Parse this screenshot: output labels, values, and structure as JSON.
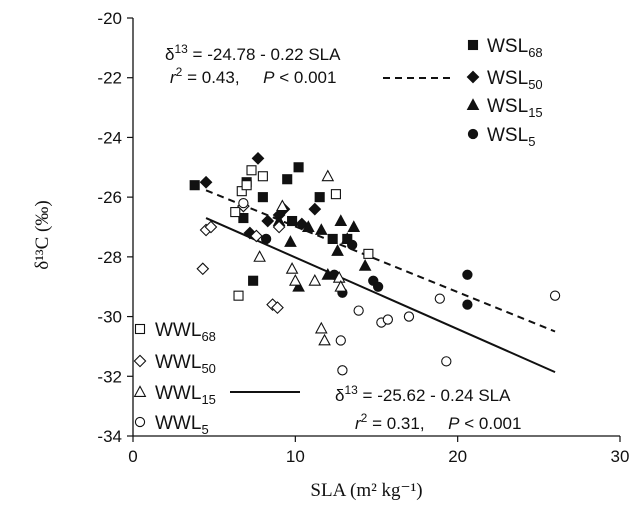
{
  "chart_data": {
    "type": "scatter",
    "xlabel": "SLA (m² kg⁻¹)",
    "ylabel": "δ¹³C (‰)",
    "xlim": [
      0,
      30
    ],
    "ylim": [
      -34,
      -20
    ],
    "xticks": [
      0,
      10,
      20,
      30
    ],
    "yticks": [
      -34,
      -32,
      -30,
      -28,
      -26,
      -24,
      -22,
      -20
    ],
    "grid": false,
    "legend_position": "top-right (WSL) and bottom-left (WWL)",
    "series": [
      {
        "name": "WSL68",
        "label_main": "WSL",
        "label_sub": "68",
        "marker": "square",
        "filled": true,
        "points": [
          [
            3.8,
            -25.6
          ],
          [
            6.8,
            -26.7
          ],
          [
            7.0,
            -25.5
          ],
          [
            7.4,
            -28.8
          ],
          [
            8.0,
            -26.0
          ],
          [
            9.5,
            -25.4
          ],
          [
            9.8,
            -26.8
          ],
          [
            10.2,
            -25.0
          ],
          [
            11.5,
            -26.0
          ],
          [
            12.3,
            -27.4
          ],
          [
            13.2,
            -27.4
          ]
        ]
      },
      {
        "name": "WSL50",
        "label_main": "WSL",
        "label_sub": "50",
        "marker": "diamond",
        "filled": true,
        "points": [
          [
            4.5,
            -25.5
          ],
          [
            7.2,
            -27.2
          ],
          [
            7.7,
            -24.7
          ],
          [
            8.3,
            -26.8
          ],
          [
            9.0,
            -26.6
          ],
          [
            9.3,
            -26.4
          ],
          [
            10.4,
            -26.9
          ],
          [
            11.2,
            -26.4
          ]
        ]
      },
      {
        "name": "WSL15",
        "label_main": "WSL",
        "label_sub": "15",
        "marker": "triangle",
        "filled": true,
        "points": [
          [
            9.0,
            -26.8
          ],
          [
            9.7,
            -27.5
          ],
          [
            10.2,
            -29.0
          ],
          [
            10.8,
            -27.0
          ],
          [
            11.6,
            -27.1
          ],
          [
            12.0,
            -28.6
          ],
          [
            12.6,
            -27.8
          ],
          [
            12.8,
            -26.8
          ],
          [
            13.2,
            -27.4
          ],
          [
            13.6,
            -27.0
          ],
          [
            14.3,
            -28.3
          ]
        ]
      },
      {
        "name": "WSL5",
        "label_main": "WSL",
        "label_sub": "5",
        "marker": "circle",
        "filled": true,
        "points": [
          [
            8.2,
            -27.4
          ],
          [
            12.4,
            -28.6
          ],
          [
            12.9,
            -29.2
          ],
          [
            13.5,
            -27.6
          ],
          [
            14.8,
            -28.8
          ],
          [
            15.1,
            -29.0
          ],
          [
            20.6,
            -28.6
          ],
          [
            20.6,
            -29.6
          ]
        ]
      },
      {
        "name": "WWL68",
        "label_main": "WWL",
        "label_sub": "68",
        "marker": "square",
        "filled": false,
        "points": [
          [
            6.3,
            -26.5
          ],
          [
            6.5,
            -29.3
          ],
          [
            6.7,
            -25.8
          ],
          [
            7.0,
            -25.6
          ],
          [
            7.3,
            -25.1
          ],
          [
            8.0,
            -25.3
          ],
          [
            12.5,
            -25.9
          ],
          [
            14.5,
            -27.9
          ]
        ]
      },
      {
        "name": "WWL50",
        "label_main": "WWL",
        "label_sub": "50",
        "marker": "diamond",
        "filled": false,
        "points": [
          [
            4.3,
            -28.4
          ],
          [
            4.5,
            -27.1
          ],
          [
            4.8,
            -27.0
          ],
          [
            6.8,
            -26.3
          ],
          [
            7.6,
            -27.3
          ],
          [
            8.6,
            -29.6
          ],
          [
            8.9,
            -29.7
          ],
          [
            9.0,
            -27.0
          ]
        ]
      },
      {
        "name": "WWL15",
        "label_main": "WWL",
        "label_sub": "15",
        "marker": "triangle",
        "filled": false,
        "points": [
          [
            7.8,
            -28.0
          ],
          [
            9.2,
            -26.3
          ],
          [
            9.8,
            -28.4
          ],
          [
            10.0,
            -28.8
          ],
          [
            11.2,
            -28.8
          ],
          [
            11.6,
            -30.4
          ],
          [
            11.8,
            -30.8
          ],
          [
            12.0,
            -25.3
          ],
          [
            12.7,
            -28.7
          ],
          [
            12.8,
            -29.0
          ]
        ]
      },
      {
        "name": "WWL5",
        "label_main": "WWL",
        "label_sub": "5",
        "marker": "circle",
        "filled": false,
        "points": [
          [
            6.8,
            -26.2
          ],
          [
            12.8,
            -30.8
          ],
          [
            12.9,
            -31.8
          ],
          [
            13.9,
            -29.8
          ],
          [
            15.3,
            -30.2
          ],
          [
            15.7,
            -30.1
          ],
          [
            17.0,
            -30.0
          ],
          [
            18.9,
            -29.4
          ],
          [
            19.3,
            -31.5
          ],
          [
            26.0,
            -29.3
          ]
        ]
      }
    ],
    "regression_lines": [
      {
        "group": "WSL",
        "style": "dashed",
        "x": [
          4.5,
          26.0
        ],
        "prefix": "δ",
        "sup": "13",
        "equation": "= -24.78 - 0.22 SLA",
        "r2_label": "r",
        "r2_value": "= 0.43,",
        "p_label": "P",
        "p_value": "< 0.001"
      },
      {
        "group": "WWL",
        "style": "solid",
        "x": [
          4.5,
          26.0
        ],
        "prefix": "δ",
        "sup": "13",
        "equation": "= -25.62 - 0.24 SLA",
        "r2_label": "r",
        "r2_value": "= 0.31,",
        "p_label": "P",
        "p_value": "< 0.001"
      }
    ]
  }
}
